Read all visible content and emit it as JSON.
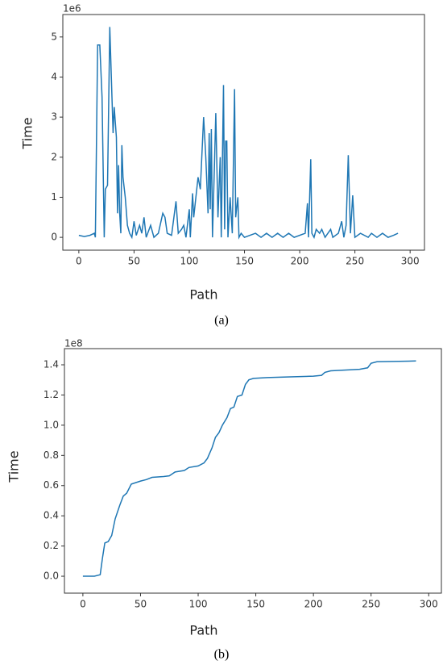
{
  "chart_data": [
    {
      "type": "line",
      "offset_label": "1e6",
      "xlabel": "Path",
      "ylabel": "Time",
      "caption": "(a)",
      "color": "#1f77b4",
      "xlim": [
        -14.5,
        313
      ],
      "xticks": [
        0,
        50,
        100,
        150,
        200,
        250,
        300
      ],
      "ylim": [
        -0.32,
        5.56
      ],
      "yticks": [
        0,
        1,
        2,
        3,
        4,
        5
      ],
      "x": [
        0,
        5,
        10,
        14,
        15,
        17,
        19,
        21,
        23,
        24,
        26,
        28,
        30,
        31,
        32,
        34,
        35,
        36,
        37,
        38,
        39,
        40,
        42,
        44,
        46,
        48,
        50,
        52,
        55,
        57,
        59,
        61,
        65,
        68,
        72,
        76,
        78,
        80,
        84,
        88,
        90,
        93,
        95,
        97,
        100,
        101,
        103,
        104,
        106,
        108,
        110,
        113,
        115,
        117,
        118,
        119,
        120,
        121,
        123,
        124,
        126,
        128,
        129,
        131,
        132,
        133,
        134,
        135,
        137,
        139,
        141,
        142,
        144,
        145,
        147,
        150,
        160,
        165,
        170,
        175,
        180,
        185,
        190,
        195,
        205,
        207,
        208,
        210,
        211,
        213,
        215,
        218,
        220,
        223,
        228,
        230,
        235,
        238,
        240,
        242,
        244,
        246,
        248,
        250,
        255,
        262,
        265,
        270,
        275,
        280,
        285,
        289
      ],
      "values": [
        0.05,
        0.02,
        0.05,
        0.1,
        0.0,
        4.8,
        4.8,
        3.5,
        0.0,
        1.2,
        1.3,
        5.25,
        3.5,
        2.6,
        3.25,
        2.5,
        0.6,
        1.8,
        0.6,
        0.1,
        2.3,
        1.5,
        1.0,
        0.3,
        0.1,
        0.0,
        0.4,
        0.05,
        0.3,
        0.1,
        0.5,
        0.0,
        0.3,
        0.0,
        0.1,
        0.6,
        0.5,
        0.1,
        0.05,
        0.9,
        0.1,
        0.2,
        0.3,
        0.0,
        0.7,
        0.0,
        1.1,
        0.5,
        1.0,
        1.5,
        1.2,
        3.0,
        2.0,
        0.6,
        2.6,
        0.7,
        2.7,
        0.0,
        2.0,
        3.1,
        0.5,
        2.0,
        0.0,
        3.8,
        0.2,
        2.4,
        2.4,
        0.0,
        1.0,
        0.1,
        3.7,
        0.5,
        1.0,
        0.0,
        0.1,
        0.0,
        0.1,
        0.0,
        0.1,
        0.0,
        0.1,
        0.0,
        0.1,
        0.0,
        0.1,
        0.85,
        0.0,
        1.95,
        0.1,
        0.0,
        0.2,
        0.1,
        0.2,
        0.0,
        0.2,
        0.0,
        0.1,
        0.4,
        0.0,
        0.3,
        2.05,
        0.1,
        1.05,
        0.0,
        0.1,
        0.0,
        0.1,
        0.0,
        0.1,
        0.0,
        0.05,
        0.1
      ]
    },
    {
      "type": "line",
      "offset_label": "1e8",
      "xlabel": "Path",
      "ylabel": "Time",
      "caption": "(b)",
      "color": "#1f77b4",
      "xlim": [
        -16,
        311
      ],
      "xticks": [
        0,
        50,
        100,
        150,
        200,
        250,
        300
      ],
      "ylim": [
        -0.112,
        1.507
      ],
      "yticks": [
        {
          "value": 0,
          "label": "0.0"
        },
        0.2,
        0.4,
        0.6,
        0.8,
        {
          "value": 1,
          "label": "1.0"
        },
        1.2,
        1.4
      ],
      "x": [
        0,
        10,
        15,
        17,
        19,
        22,
        25,
        28,
        32,
        35,
        38,
        42,
        46,
        50,
        55,
        60,
        70,
        75,
        80,
        88,
        92,
        100,
        105,
        108,
        112,
        115,
        118,
        121,
        125,
        128,
        131,
        134,
        138,
        141,
        144,
        148,
        160,
        180,
        200,
        207,
        210,
        215,
        240,
        247,
        250,
        255,
        289
      ],
      "values": [
        0.0,
        0.0,
        0.01,
        0.12,
        0.22,
        0.23,
        0.27,
        0.38,
        0.47,
        0.53,
        0.55,
        0.61,
        0.62,
        0.63,
        0.64,
        0.655,
        0.66,
        0.665,
        0.69,
        0.7,
        0.72,
        0.73,
        0.75,
        0.78,
        0.85,
        0.92,
        0.95,
        1.0,
        1.05,
        1.11,
        1.12,
        1.19,
        1.2,
        1.27,
        1.3,
        1.31,
        1.315,
        1.32,
        1.325,
        1.33,
        1.35,
        1.36,
        1.37,
        1.38,
        1.41,
        1.42,
        1.425
      ]
    }
  ]
}
